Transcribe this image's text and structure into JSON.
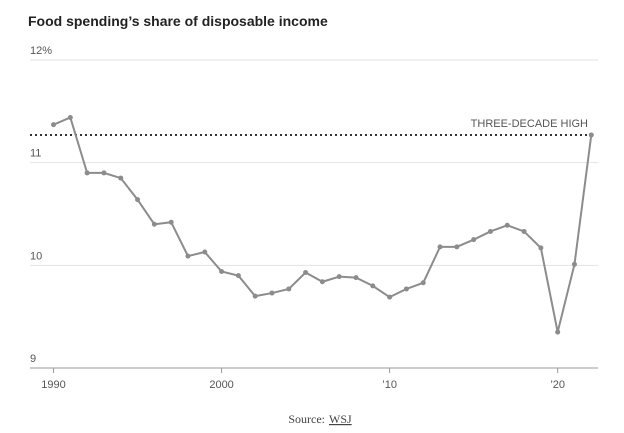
{
  "chart_data": {
    "type": "line",
    "title": "Food spending’s share of disposable income",
    "x": [
      1990,
      1991,
      1992,
      1993,
      1994,
      1995,
      1996,
      1997,
      1998,
      1999,
      2000,
      2001,
      2002,
      2003,
      2004,
      2005,
      2006,
      2007,
      2008,
      2009,
      2010,
      2011,
      2012,
      2013,
      2014,
      2015,
      2016,
      2017,
      2018,
      2019,
      2020,
      2021,
      2022
    ],
    "series": [
      {
        "name": "Food spending share",
        "color": "#8c8c8c",
        "values": [
          11.37,
          11.44,
          10.9,
          10.9,
          10.85,
          10.64,
          10.4,
          10.42,
          10.09,
          10.13,
          9.94,
          9.9,
          9.7,
          9.73,
          9.77,
          9.93,
          9.84,
          9.89,
          9.88,
          9.8,
          9.69,
          9.77,
          9.83,
          10.18,
          10.18,
          10.25,
          10.33,
          10.39,
          10.33,
          10.17,
          9.35,
          10.01,
          11.27
        ]
      }
    ],
    "xlim": [
      1988.6,
      2022.4
    ],
    "xticks": [
      1990,
      2000,
      {
        "value": 2010,
        "label": "’10"
      },
      {
        "value": 2020,
        "label": "’20"
      }
    ],
    "ylim": [
      9,
      12
    ],
    "yticks": [
      9,
      10,
      11,
      {
        "value": 12,
        "label": "12%"
      }
    ],
    "grid": true,
    "annotations": [
      {
        "text": "THREE-DECADE HIGH",
        "y": 11.27
      }
    ],
    "source_label": "Source:",
    "source": "WSJ"
  }
}
